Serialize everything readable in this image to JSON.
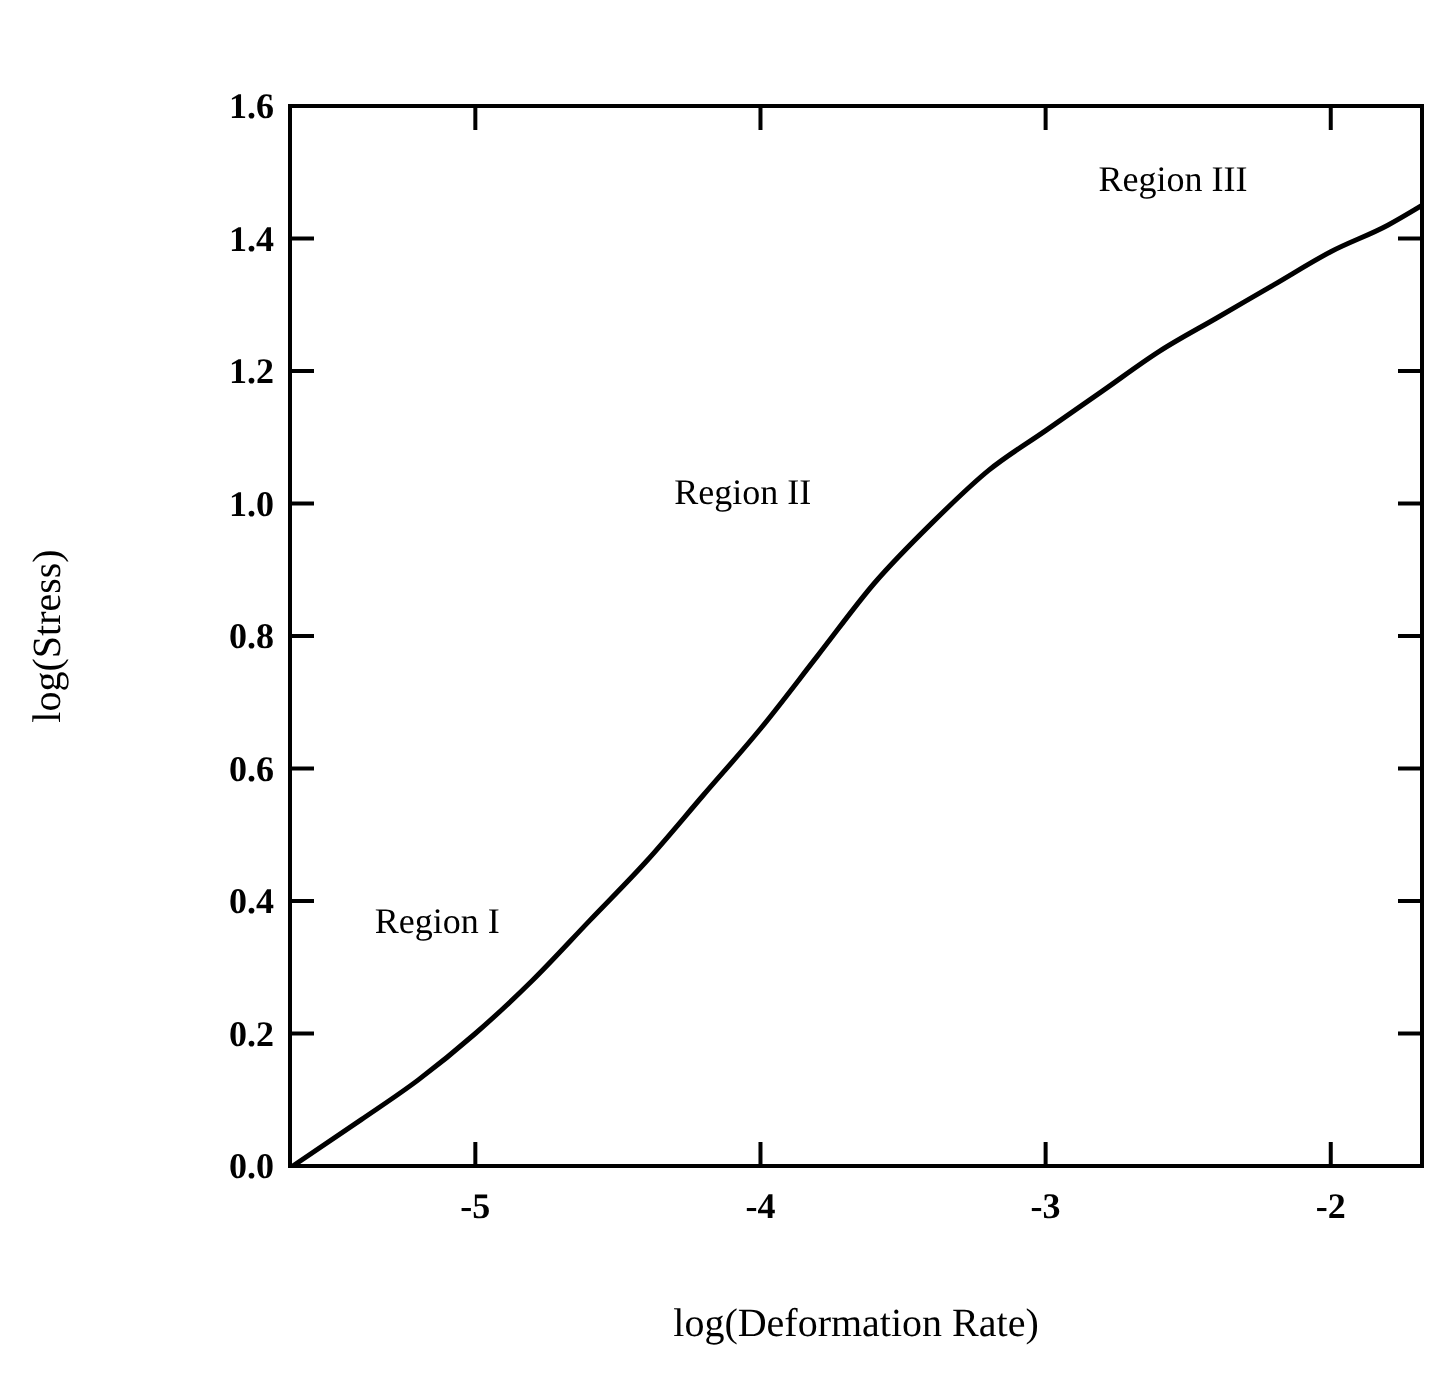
{
  "chart_data": {
    "type": "line",
    "xlabel": "log(Deformation Rate)",
    "ylabel": "log(Stress)",
    "x": [
      -5.64,
      -5.4,
      -5.2,
      -5.0,
      -4.8,
      -4.6,
      -4.4,
      -4.2,
      -4.0,
      -3.8,
      -3.6,
      -3.4,
      -3.2,
      -3.0,
      -2.8,
      -2.6,
      -2.4,
      -2.2,
      -2.0,
      -1.8,
      -1.68
    ],
    "series": [
      {
        "color": "#000000",
        "values": [
          0,
          0.07,
          0.13,
          0.2,
          0.28,
          0.37,
          0.46,
          0.56,
          0.66,
          0.77,
          0.88,
          0.97,
          1.05,
          1.11,
          1.17,
          1.23,
          1.28,
          1.33,
          1.38,
          1.42,
          1.45
        ]
      }
    ],
    "xlim": [
      -5.65,
      -1.68
    ],
    "ylim": [
      0,
      1.6
    ],
    "xticks": [
      -5,
      -4,
      -3,
      -2
    ],
    "yticks": [
      {
        "value": 0,
        "label": "0.0"
      },
      {
        "value": 0.2,
        "label": "0.2"
      },
      {
        "value": 0.4,
        "label": "0.4"
      },
      {
        "value": 0.6,
        "label": "0.6"
      },
      {
        "value": 0.8,
        "label": "0.8"
      },
      {
        "value": 1,
        "label": "1.0"
      },
      {
        "value": 1.2,
        "label": "1.2"
      },
      {
        "value": 1.4,
        "label": "1.4"
      },
      {
        "value": 1.6,
        "label": "1.6"
      }
    ],
    "annotations": [
      "Region I",
      "Region II",
      "Region III"
    ],
    "grid": false,
    "marker": "none",
    "line_style": "solid"
  }
}
